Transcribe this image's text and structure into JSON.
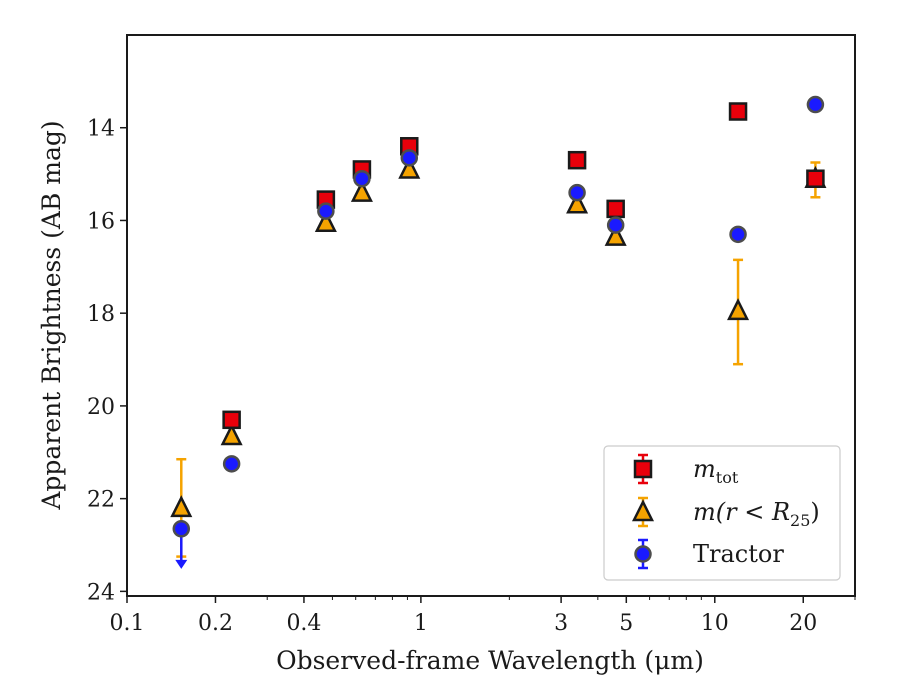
{
  "chart_data": {
    "type": "scatter",
    "xlabel": "Observed-frame Wavelength (μm)",
    "ylabel": "Apparent Brightness (AB mag)",
    "xscale": "log",
    "xlim": [
      0.1,
      30
    ],
    "ylim": [
      24.1,
      12.0
    ],
    "y_inverted": true,
    "grid": false,
    "legend_position": "bottom-right",
    "xticks": [
      {
        "value": 0.1,
        "label": "0.1"
      },
      {
        "value": 0.2,
        "label": "0.2"
      },
      {
        "value": 0.4,
        "label": "0.4"
      },
      {
        "value": 1,
        "label": "1"
      },
      {
        "value": 3,
        "label": "3"
      },
      {
        "value": 5,
        "label": "5"
      },
      {
        "value": 10,
        "label": "10"
      },
      {
        "value": 20,
        "label": "20"
      }
    ],
    "yticks": [
      {
        "value": 14,
        "label": "14"
      },
      {
        "value": 16,
        "label": "16"
      },
      {
        "value": 18,
        "label": "18"
      },
      {
        "value": 20,
        "label": "20"
      },
      {
        "value": 22,
        "label": "22"
      },
      {
        "value": 24,
        "label": "24"
      }
    ],
    "series": [
      {
        "name": "m_tot",
        "legend_label": {
          "main": "m",
          "sub": "tot"
        },
        "marker": "square",
        "face_color": "#e8000b",
        "edge_color": "#1a1a1a",
        "error_color": "#e8000b",
        "points": [
          {
            "x": 0.227,
            "y": 20.3
          },
          {
            "x": 0.475,
            "y": 15.55
          },
          {
            "x": 0.63,
            "y": 14.9
          },
          {
            "x": 0.913,
            "y": 14.4
          },
          {
            "x": 3.4,
            "y": 14.7
          },
          {
            "x": 4.6,
            "y": 15.75
          },
          {
            "x": 12.0,
            "y": 13.65
          },
          {
            "x": 22.0,
            "y": 15.1
          }
        ]
      },
      {
        "name": "m(r<R25)",
        "legend_label": {
          "main": "m(r < R",
          "sub": "25",
          "tail": ")"
        },
        "marker": "triangle",
        "face_color": "#f5a300",
        "edge_color": "#1a1a1a",
        "error_color": "#f5a300",
        "points": [
          {
            "x": 0.153,
            "y": 22.2,
            "yerr_low": 21.15,
            "yerr_high": 23.25
          },
          {
            "x": 0.227,
            "y": 20.65
          },
          {
            "x": 0.475,
            "y": 16.05
          },
          {
            "x": 0.63,
            "y": 15.4
          },
          {
            "x": 0.913,
            "y": 14.9
          },
          {
            "x": 3.4,
            "y": 15.65
          },
          {
            "x": 4.6,
            "y": 16.35
          },
          {
            "x": 12.0,
            "y": 17.95,
            "yerr_low": 16.85,
            "yerr_high": 19.1
          },
          {
            "x": 22.0,
            "y": 15.1,
            "yerr_low": 14.75,
            "yerr_high": 15.5
          }
        ]
      },
      {
        "name": "Tractor",
        "legend_label": {
          "main": "Tractor"
        },
        "marker": "circle",
        "face_color": "#1a1aff",
        "edge_color": "#4d4d4d",
        "error_color": "#1a1aff",
        "points": [
          {
            "x": 0.153,
            "y": 22.65,
            "upper_limit_to": 23.45
          },
          {
            "x": 0.227,
            "y": 21.25
          },
          {
            "x": 0.475,
            "y": 15.8
          },
          {
            "x": 0.63,
            "y": 15.1
          },
          {
            "x": 0.913,
            "y": 14.65
          },
          {
            "x": 3.4,
            "y": 15.4
          },
          {
            "x": 4.6,
            "y": 16.1
          },
          {
            "x": 12.0,
            "y": 16.3
          },
          {
            "x": 22.0,
            "y": 13.5
          }
        ]
      }
    ]
  }
}
